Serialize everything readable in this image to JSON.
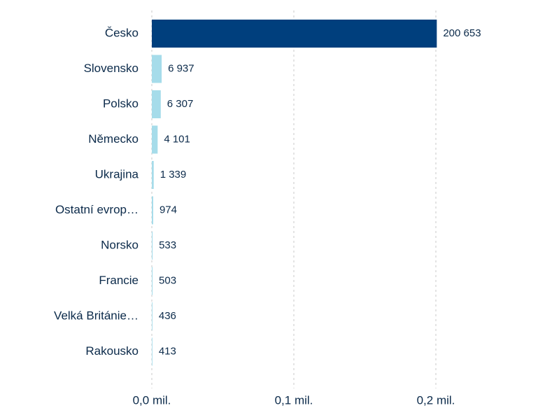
{
  "chart_data": {
    "type": "bar",
    "orientation": "horizontal",
    "categories": [
      "Česko",
      "Slovensko",
      "Polsko",
      "Německo",
      "Ukrajina",
      "Ostatní evrop…",
      "Norsko",
      "Francie",
      "Velká Británie…",
      "Rakousko"
    ],
    "values": [
      200653,
      6937,
      6307,
      4101,
      1339,
      974,
      533,
      503,
      436,
      413
    ],
    "value_labels": [
      "200 653",
      "6 937",
      "6 307",
      "4 101",
      "1 339",
      "974",
      "533",
      "503",
      "436",
      "413"
    ],
    "colors": [
      "#003f7d",
      "#a6dcea",
      "#a6dcea",
      "#a6dcea",
      "#a6dcea",
      "#a6dcea",
      "#a6dcea",
      "#a6dcea",
      "#a6dcea",
      "#a6dcea"
    ],
    "xlim": [
      0,
      250000
    ],
    "xticks": [
      {
        "value": 0,
        "label": "0,0 mil."
      },
      {
        "value": 100000,
        "label": "0,1 mil."
      },
      {
        "value": 200000,
        "label": "0,2 mil."
      }
    ],
    "grid": true
  }
}
